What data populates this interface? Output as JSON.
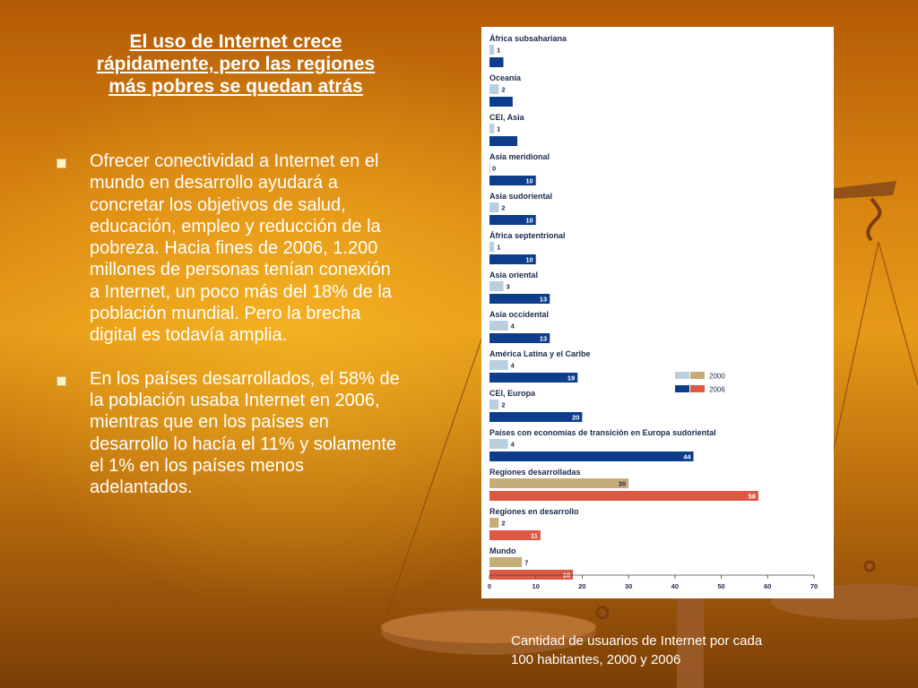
{
  "slide": {
    "title": "El uso de Internet crece rápidamente, pero las regiones más pobres se quedan atrás",
    "bullets": [
      "Ofrecer conectividad a Internet en el mundo en desarrollo ayudará a concretar los objetivos de salud, educación, empleo y reducción de la pobreza. Hacia fines de 2006, 1.200 millones de personas tenían conexión a Internet, un poco más del 18% de la población mundial. Pero la brecha digital es todavía amplia.",
      "En los países desarrollados, el 58% de la población usaba Internet en 2006, mientras que en los países en desarrollo lo hacía el 11% y solamente el 1% en los países menos adelantados."
    ],
    "caption_line1": "Cantidad de usuarios de Internet por cada",
    "caption_line2": "100 habitantes, 2000 y 2006"
  },
  "colors": {
    "series_2000_regional": "#b9cfe0",
    "series_2006_regional": "#0e3d8c",
    "series_2000_aggregate": "#c5ad7a",
    "series_2006_aggregate": "#df5844"
  },
  "chart_data": {
    "type": "bar",
    "orientation": "horizontal",
    "categories": [
      "África subsahariana",
      "Oceanía",
      "CEI, Asia",
      "Asia meridional",
      "Asia sudoriental",
      "África septentrional",
      "Asia oriental",
      "Asia occidental",
      "América Latina y el Caribe",
      "CEI, Europa",
      "Países con economías de transición en Europa sudoriental",
      "Regiones desarrolladas",
      "Regiones en desarrollo",
      "Mundo"
    ],
    "series": [
      {
        "name": "2000",
        "values": [
          1,
          2,
          1,
          0,
          2,
          1,
          3,
          4,
          4,
          2,
          4,
          30,
          2,
          7
        ]
      },
      {
        "name": "2006",
        "values": [
          3,
          5,
          6,
          10,
          10,
          10,
          13,
          13,
          19,
          20,
          44,
          58,
          11,
          18
        ]
      }
    ],
    "xlim": [
      0,
      70
    ],
    "xticks": [
      0,
      10,
      20,
      30,
      40,
      50,
      60,
      70
    ],
    "legend": {
      "position": "right",
      "labels": [
        "2000",
        "2006"
      ]
    },
    "grid": false
  }
}
